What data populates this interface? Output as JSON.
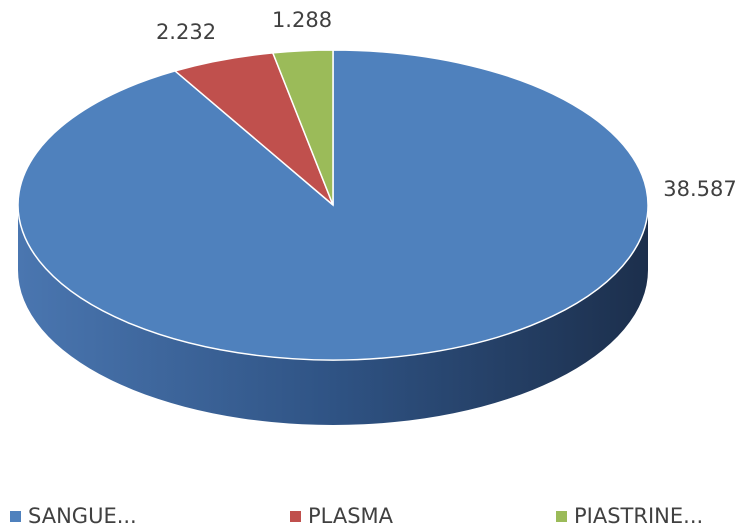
{
  "chart_data": {
    "type": "pie",
    "categories": [
      "SANGUE...",
      "PLASMA",
      "PIASTRINE..."
    ],
    "values": [
      38587,
      2232,
      1288
    ],
    "value_labels": [
      "38.587",
      "2.232",
      "1.288"
    ],
    "colors": [
      "#4f81bd",
      "#c0504d",
      "#9bbb59"
    ],
    "legend": "bottom"
  }
}
